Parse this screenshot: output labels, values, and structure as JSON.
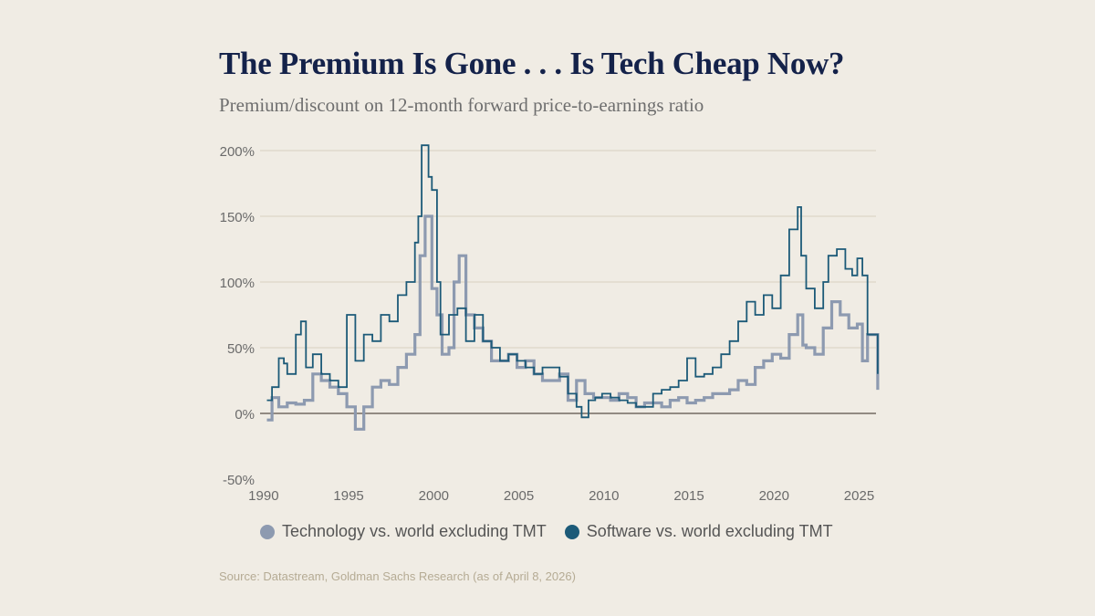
{
  "title": "The Premium Is Gone . . . Is Tech Cheap Now?",
  "subtitle": "Premium/discount on 12-month forward price-to-earnings ratio",
  "source": "Source: Datastream, Goldman Sachs Research (as of April 8, 2026)",
  "colors": {
    "background": "#f0ece4",
    "technology": "#8d9ab0",
    "software": "#1c5a78",
    "grid": "#ddd6c6",
    "zero_line": "#5a5048"
  },
  "chart_data": {
    "type": "line",
    "title": "The Premium Is Gone . . . Is Tech Cheap Now?",
    "ylabel": "",
    "xlabel": "",
    "ylim": [
      -50,
      200
    ],
    "xlim": [
      1989.9,
      2026.1
    ],
    "y_ticks": [
      "200%",
      "150%",
      "100%",
      "50%",
      "0%",
      "-50%"
    ],
    "y_tick_values": [
      200,
      150,
      100,
      50,
      0,
      -50
    ],
    "x_ticks": [
      "1990",
      "1995",
      "2000",
      "2005",
      "2010",
      "2015",
      "2020",
      "2025"
    ],
    "x_tick_values": [
      1990,
      1995,
      2000,
      2005,
      2010,
      2015,
      2020,
      2025
    ],
    "grid": true,
    "legend": "bottom",
    "series": [
      {
        "name": "Technology vs. world excluding TMT",
        "x": [
          1990.3,
          1990.6,
          1991,
          1991.5,
          1992,
          1992.5,
          1993,
          1993.5,
          1994,
          1994.5,
          1995,
          1995.5,
          1996,
          1996.5,
          1997,
          1997.5,
          1998,
          1998.5,
          1999,
          1999.3,
          1999.6,
          2000,
          2000.3,
          2000.6,
          2001,
          2001.3,
          2001.6,
          2002,
          2002.5,
          2003,
          2003.5,
          2004,
          2004.5,
          2005,
          2005.5,
          2006,
          2006.5,
          2007,
          2007.5,
          2008,
          2008.5,
          2009,
          2009.5,
          2010,
          2010.5,
          2011,
          2011.5,
          2012,
          2012.5,
          2013,
          2013.5,
          2014,
          2014.5,
          2015,
          2015.5,
          2016,
          2016.5,
          2017,
          2017.5,
          2018,
          2018.5,
          2019,
          2019.5,
          2020,
          2020.5,
          2021,
          2021.5,
          2021.8,
          2022,
          2022.5,
          2023,
          2023.5,
          2024,
          2024.5,
          2025,
          2025.3,
          2025.6,
          2026.2
        ],
        "values": [
          -5,
          12,
          5,
          8,
          7,
          10,
          30,
          25,
          20,
          15,
          5,
          -12,
          5,
          20,
          25,
          22,
          35,
          45,
          60,
          120,
          150,
          95,
          75,
          45,
          50,
          100,
          120,
          75,
          65,
          55,
          40,
          40,
          45,
          35,
          40,
          30,
          25,
          25,
          30,
          10,
          25,
          15,
          12,
          12,
          10,
          15,
          12,
          5,
          8,
          8,
          5,
          10,
          12,
          8,
          10,
          12,
          15,
          15,
          18,
          25,
          22,
          35,
          40,
          45,
          42,
          60,
          75,
          52,
          50,
          45,
          65,
          85,
          75,
          65,
          68,
          40,
          60,
          18
        ]
      },
      {
        "name": "Software vs. world excluding TMT",
        "x": [
          1990.3,
          1990.6,
          1991,
          1991.3,
          1991.5,
          1992,
          1992.3,
          1992.6,
          1993,
          1993.5,
          1994,
          1994.5,
          1995,
          1995.5,
          1996,
          1996.5,
          1997,
          1997.5,
          1998,
          1998.5,
          1999,
          1999.2,
          1999.4,
          1999.8,
          2000,
          2000.3,
          2000.5,
          2001,
          2001.5,
          2002,
          2002.5,
          2003,
          2003.5,
          2004,
          2004.5,
          2005,
          2005.5,
          2006,
          2006.5,
          2007,
          2007.5,
          2008,
          2008.5,
          2008.8,
          2009.2,
          2009.6,
          2010,
          2010.5,
          2011,
          2011.5,
          2012,
          2012.5,
          2013,
          2013.5,
          2014,
          2014.5,
          2015,
          2015.5,
          2016,
          2016.5,
          2017,
          2017.5,
          2018,
          2018.5,
          2019,
          2019.5,
          2020,
          2020.5,
          2021,
          2021.5,
          2021.7,
          2022,
          2022.5,
          2023,
          2023.3,
          2023.8,
          2024.3,
          2024.7,
          2025,
          2025.3,
          2025.6,
          2026.2
        ],
        "values": [
          10,
          20,
          42,
          38,
          30,
          60,
          70,
          35,
          45,
          30,
          25,
          20,
          75,
          40,
          60,
          55,
          75,
          70,
          90,
          100,
          130,
          150,
          204,
          180,
          170,
          100,
          60,
          75,
          80,
          55,
          75,
          55,
          50,
          40,
          45,
          40,
          35,
          30,
          35,
          35,
          28,
          15,
          5,
          -3,
          10,
          12,
          15,
          12,
          10,
          8,
          5,
          5,
          15,
          18,
          20,
          25,
          42,
          28,
          30,
          35,
          45,
          55,
          70,
          85,
          75,
          90,
          80,
          105,
          140,
          157,
          120,
          95,
          80,
          100,
          120,
          125,
          110,
          105,
          118,
          105,
          60,
          30
        ]
      }
    ]
  }
}
